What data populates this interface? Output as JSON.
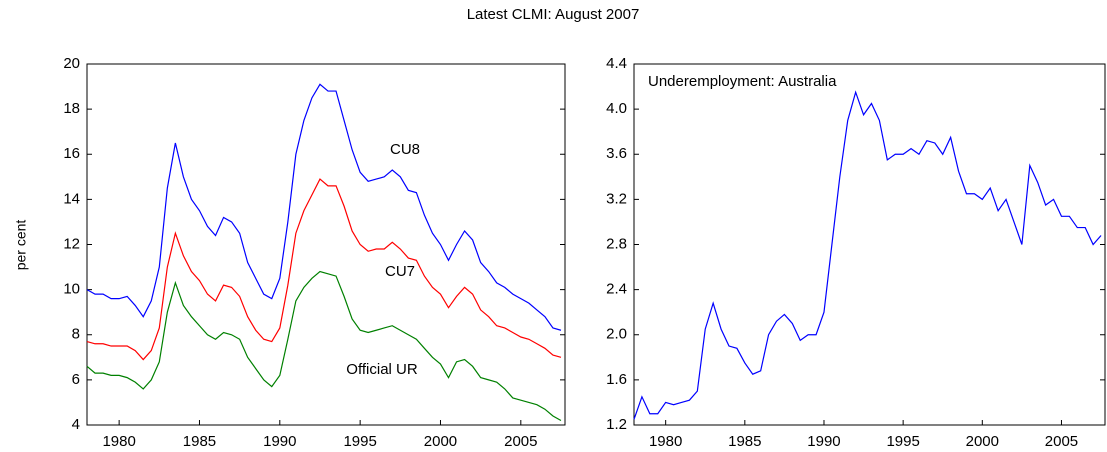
{
  "title": "Latest CLMI: August 2007",
  "chart_data": [
    {
      "type": "line",
      "ylabel": "per cent",
      "x": [
        1978,
        1978.5,
        1979,
        1979.5,
        1980,
        1980.5,
        1981,
        1981.5,
        1982,
        1982.5,
        1983,
        1983.5,
        1984,
        1984.5,
        1985,
        1985.5,
        1986,
        1986.5,
        1987,
        1987.5,
        1988,
        1988.5,
        1989,
        1989.5,
        1990,
        1990.5,
        1991,
        1991.5,
        1992,
        1992.5,
        1993,
        1993.5,
        1994,
        1994.5,
        1995,
        1995.5,
        1996,
        1996.5,
        1997,
        1997.5,
        1998,
        1998.5,
        1999,
        1999.5,
        2000,
        2000.5,
        2001,
        2001.5,
        2002,
        2002.5,
        2003,
        2003.5,
        2004,
        2004.5,
        2005,
        2005.5,
        2006,
        2006.5,
        2007,
        2007.5
      ],
      "series": [
        {
          "name": "CU8",
          "color": "#0000ff",
          "values": [
            10.0,
            9.8,
            9.8,
            9.6,
            9.6,
            9.7,
            9.3,
            8.8,
            9.5,
            11.0,
            14.5,
            16.5,
            15.0,
            14.0,
            13.5,
            12.8,
            12.4,
            13.2,
            13.0,
            12.5,
            11.2,
            10.5,
            9.8,
            9.6,
            10.5,
            13.0,
            16.0,
            17.5,
            18.5,
            19.1,
            18.8,
            18.8,
            17.5,
            16.2,
            15.2,
            14.8,
            14.9,
            15.0,
            15.3,
            15.0,
            14.4,
            14.3,
            13.3,
            12.5,
            12.0,
            11.3,
            12.0,
            12.6,
            12.2,
            11.2,
            10.8,
            10.3,
            10.1,
            9.8,
            9.6,
            9.4,
            9.1,
            8.8,
            8.3,
            8.2
          ]
        },
        {
          "name": "CU7",
          "color": "#ff0000",
          "values": [
            7.7,
            7.6,
            7.6,
            7.5,
            7.5,
            7.5,
            7.3,
            6.9,
            7.3,
            8.3,
            11.0,
            12.5,
            11.5,
            10.8,
            10.4,
            9.8,
            9.5,
            10.2,
            10.1,
            9.7,
            8.8,
            8.2,
            7.8,
            7.7,
            8.3,
            10.2,
            12.5,
            13.5,
            14.2,
            14.9,
            14.6,
            14.6,
            13.7,
            12.6,
            12.0,
            11.7,
            11.8,
            11.8,
            12.1,
            11.8,
            11.4,
            11.3,
            10.6,
            10.1,
            9.8,
            9.2,
            9.7,
            10.1,
            9.8,
            9.1,
            8.8,
            8.4,
            8.3,
            8.1,
            7.9,
            7.8,
            7.6,
            7.4,
            7.1,
            7.0
          ]
        },
        {
          "name": "Official UR",
          "color": "#008000",
          "values": [
            6.6,
            6.3,
            6.3,
            6.2,
            6.2,
            6.1,
            5.9,
            5.6,
            6.0,
            6.8,
            9.0,
            10.3,
            9.3,
            8.8,
            8.4,
            8.0,
            7.8,
            8.1,
            8.0,
            7.8,
            7.0,
            6.5,
            6.0,
            5.7,
            6.2,
            7.8,
            9.5,
            10.1,
            10.5,
            10.8,
            10.7,
            10.6,
            9.7,
            8.7,
            8.2,
            8.1,
            8.2,
            8.3,
            8.4,
            8.2,
            8.0,
            7.8,
            7.4,
            7.0,
            6.7,
            6.1,
            6.8,
            6.9,
            6.6,
            6.1,
            6.0,
            5.9,
            5.6,
            5.2,
            5.1,
            5.0,
            4.9,
            4.7,
            4.4,
            4.2
          ]
        }
      ],
      "xlim": [
        1978,
        2007.75
      ],
      "xticks": [
        1980,
        1985,
        1990,
        1995,
        2000,
        2005
      ],
      "ylim": [
        4,
        20
      ],
      "yticks": [
        4,
        6,
        8,
        10,
        12,
        14,
        16,
        18,
        20
      ]
    },
    {
      "type": "line",
      "annotation": "Underemployment: Australia",
      "x": [
        1978,
        1978.5,
        1979,
        1979.5,
        1980,
        1980.5,
        1981,
        1981.5,
        1982,
        1982.5,
        1983,
        1983.5,
        1984,
        1984.5,
        1985,
        1985.5,
        1986,
        1986.5,
        1987,
        1987.5,
        1988,
        1988.5,
        1989,
        1989.5,
        1990,
        1990.5,
        1991,
        1991.5,
        1992,
        1992.5,
        1993,
        1993.5,
        1994,
        1994.5,
        1995,
        1995.5,
        1996,
        1996.5,
        1997,
        1997.5,
        1998,
        1998.5,
        1999,
        1999.5,
        2000,
        2000.5,
        2001,
        2001.5,
        2002,
        2002.5,
        2003,
        2003.5,
        2004,
        2004.5,
        2005,
        2005.5,
        2006,
        2006.5,
        2007,
        2007.5
      ],
      "series": [
        {
          "color": "#0000ff",
          "values": [
            1.25,
            1.45,
            1.3,
            1.3,
            1.4,
            1.38,
            1.4,
            1.42,
            1.5,
            2.05,
            2.28,
            2.05,
            1.9,
            1.88,
            1.75,
            1.65,
            1.68,
            2.0,
            2.12,
            2.18,
            2.1,
            1.95,
            2.0,
            2.0,
            2.2,
            2.8,
            3.4,
            3.9,
            4.15,
            3.95,
            4.05,
            3.9,
            3.55,
            3.6,
            3.6,
            3.65,
            3.6,
            3.72,
            3.7,
            3.6,
            3.75,
            3.45,
            3.25,
            3.25,
            3.2,
            3.3,
            3.1,
            3.2,
            3.0,
            2.8,
            3.5,
            3.35,
            3.15,
            3.2,
            3.05,
            3.05,
            2.95,
            2.95,
            2.8,
            2.88
          ]
        }
      ],
      "xlim": [
        1978,
        2007.75
      ],
      "xticks": [
        1980,
        1985,
        1990,
        1995,
        2000,
        2005
      ],
      "ylim": [
        1.2,
        4.4
      ],
      "yticks": [
        1.2,
        1.6,
        {
          "value": 2,
          "label": "2.0"
        },
        2.4,
        2.8,
        3.2,
        3.6,
        {
          "value": 4,
          "label": "4.0"
        },
        4.4
      ]
    }
  ]
}
